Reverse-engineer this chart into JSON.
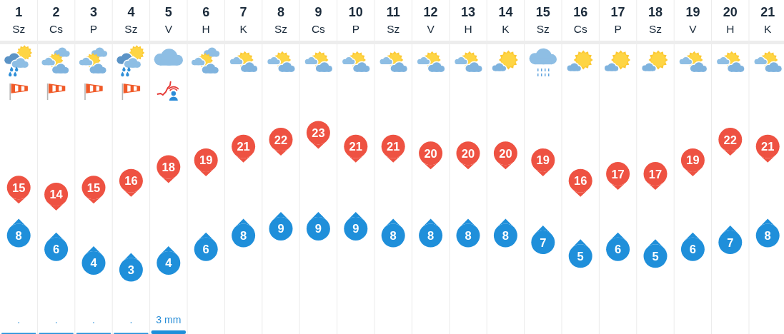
{
  "chart_data": {
    "type": "scatter",
    "categories": [
      "1 Sz",
      "2 Cs",
      "3 P",
      "4 Sz",
      "5 V",
      "6 H",
      "7 K",
      "8 Sz",
      "9 Cs",
      "10 P",
      "11 Sz",
      "12 V",
      "13 H",
      "14 K",
      "15 Sz",
      "16 Cs",
      "17 P",
      "18 Sz",
      "19 V",
      "20 H",
      "21 K"
    ],
    "series": [
      {
        "color": "#ee5242",
        "values": [
          15,
          14,
          15,
          16,
          18,
          19,
          21,
          22,
          23,
          21,
          21,
          20,
          20,
          20,
          19,
          16,
          17,
          17,
          19,
          22,
          21
        ]
      },
      {
        "color": "#1f8fda",
        "values": [
          8,
          6,
          4,
          3,
          4,
          6,
          8,
          9,
          9,
          9,
          8,
          8,
          8,
          8,
          7,
          5,
          6,
          5,
          6,
          7,
          8
        ]
      }
    ],
    "annotations": [
      ".",
      ".",
      ".",
      ".",
      "3 mm"
    ],
    "data_labels": true,
    "grid": "x",
    "tick_labels": "x"
  }
}
